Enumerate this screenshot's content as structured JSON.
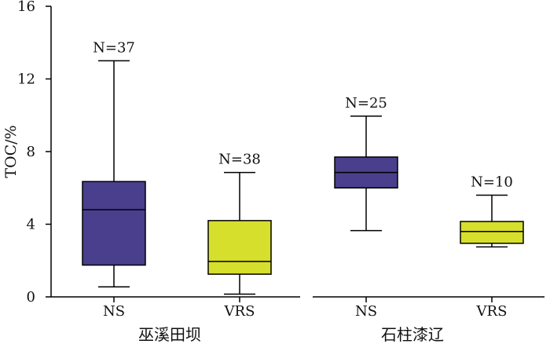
{
  "chart_data": {
    "type": "box",
    "ylabel": "TOC/%",
    "ylim": [
      0,
      16
    ],
    "yticks": [
      0,
      4,
      8,
      12,
      16
    ],
    "grid": false,
    "colors": {
      "NS": "#4a3f8c",
      "VRS": "#d6df2c"
    },
    "groups": [
      {
        "name": "巫溪田坝",
        "boxes": [
          {
            "category": "NS",
            "n_label": "N=37",
            "min": 0.55,
            "q1": 1.75,
            "median": 4.8,
            "q3": 6.35,
            "max": 13.0
          },
          {
            "category": "VRS",
            "n_label": "N=38",
            "min": 0.15,
            "q1": 1.25,
            "median": 1.95,
            "q3": 4.2,
            "max": 6.85
          }
        ]
      },
      {
        "name": "石柱漆辽",
        "boxes": [
          {
            "category": "NS",
            "n_label": "N=25",
            "min": 3.65,
            "q1": 6.0,
            "median": 6.85,
            "q3": 7.7,
            "max": 9.95
          },
          {
            "category": "VRS",
            "n_label": "N=10",
            "min": 2.75,
            "q1": 2.95,
            "median": 3.6,
            "q3": 4.15,
            "max": 5.6
          }
        ]
      }
    ]
  }
}
